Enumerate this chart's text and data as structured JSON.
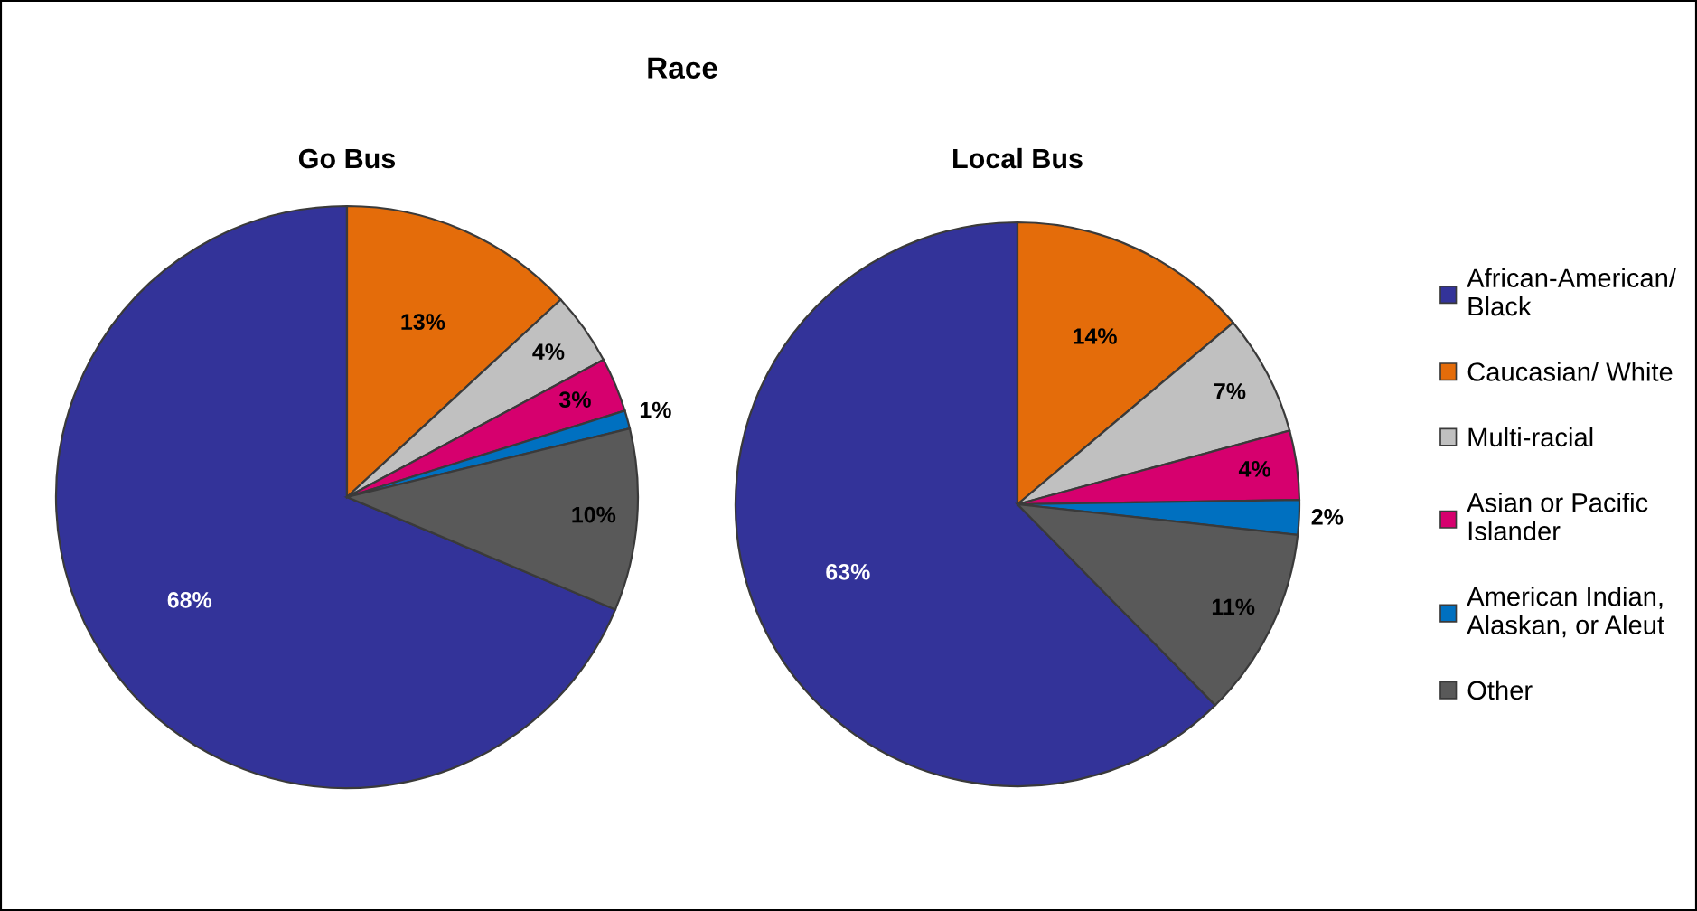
{
  "chart_data": [
    {
      "type": "pie",
      "title": "Race",
      "subtitle": "Go Bus",
      "categories": [
        "African-American/ Black",
        "Caucasian/ White",
        "Multi-racial",
        "Asian or Pacific Islander",
        "American Indian, Alaskan, or Aleut",
        "Other"
      ],
      "values": [
        68,
        13,
        4,
        3,
        1,
        10
      ],
      "colors": [
        "#333399",
        "#e46c0a",
        "#c0c0c0",
        "#d6006e",
        "#0070c0",
        "#595959"
      ],
      "value_labels": [
        "68%",
        "13%",
        "4%",
        "3%",
        "1%",
        "10%"
      ],
      "legend": "right"
    },
    {
      "type": "pie",
      "subtitle": "Local Bus",
      "categories": [
        null,
        null,
        null,
        null,
        null,
        null
      ],
      "values": [
        63,
        14,
        7,
        4,
        2,
        11
      ],
      "colors": [
        "#333399",
        "#e46c0a",
        "#c0c0c0",
        "#d6006e",
        "#0070c0",
        "#595959"
      ],
      "value_labels": [
        "63%",
        "14%",
        "7%",
        "4%",
        "2%",
        "11%"
      ]
    }
  ]
}
